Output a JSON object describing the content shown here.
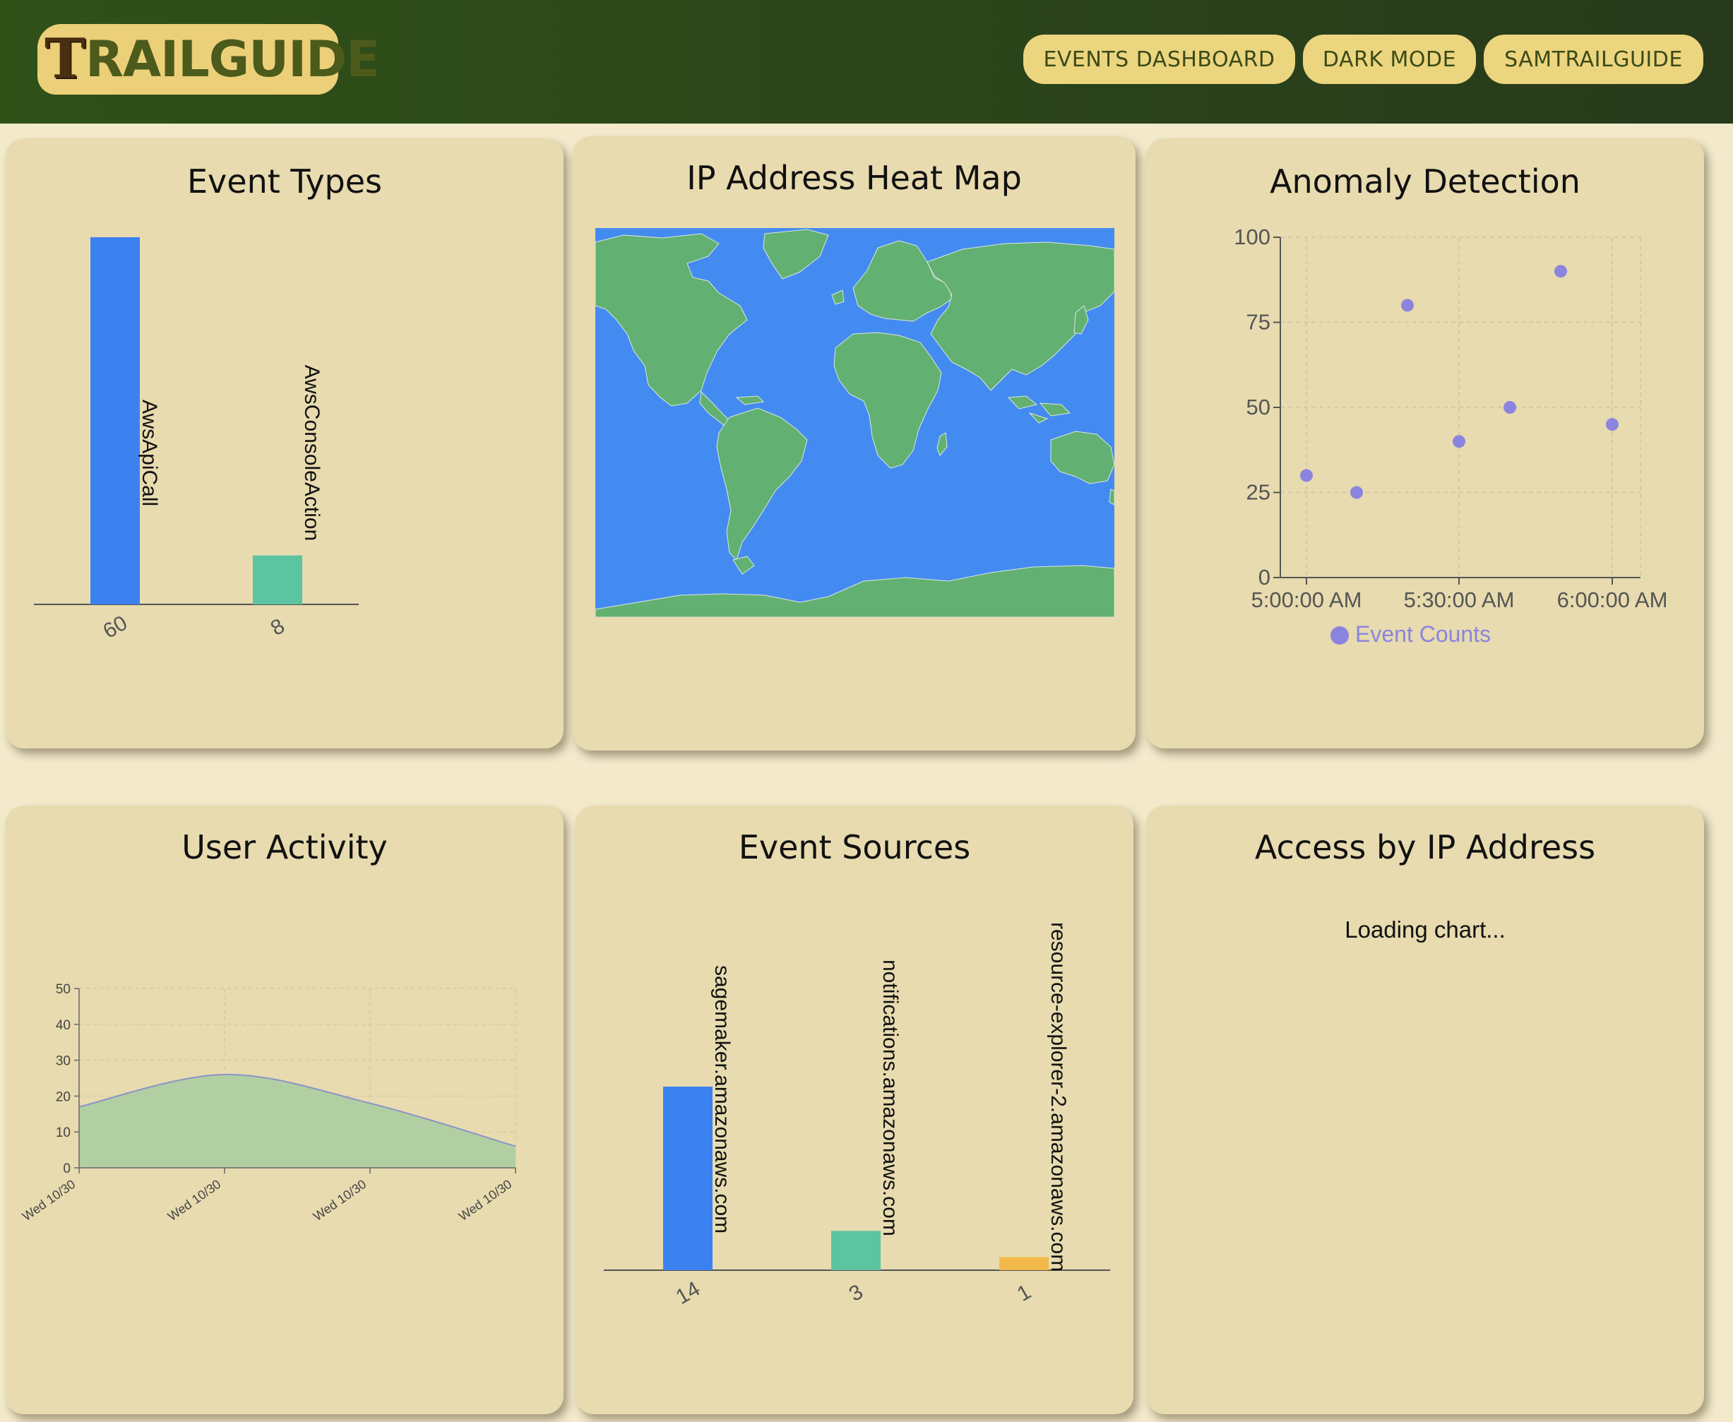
{
  "header": {
    "logo_first": "T",
    "logo_rest": "RAILGUIDE",
    "nav": [
      "EVENTS DASHBOARD",
      "DARK MODE",
      "SAMTRAILGUIDE"
    ]
  },
  "cards": {
    "event_types": {
      "title": "Event Types",
      "chart_data": {
        "type": "bar",
        "categories": [
          "AwsApiCall",
          "AwsConsoleAction"
        ],
        "values": [
          60,
          8
        ],
        "tick_labels": [
          "60",
          "8"
        ],
        "colors": [
          "#3b82f0",
          "#5cc4a0"
        ]
      }
    },
    "ip_heat_map": {
      "title": "IP Address Heat Map",
      "ocean_color": "#448bf1",
      "land_color": "#62b072"
    },
    "anomaly": {
      "title": "Anomaly Detection",
      "chart_data": {
        "type": "scatter",
        "x": [
          "5:00:00 AM",
          "5:10:00 AM",
          "5:20:00 AM",
          "5:30:00 AM",
          "5:40:00 AM",
          "5:50:00 AM",
          "6:00:00 AM"
        ],
        "y": [
          30,
          25,
          80,
          40,
          50,
          90,
          45
        ],
        "x_ticks": [
          "5:00:00 AM",
          "5:30:00 AM",
          "6:00:00 AM"
        ],
        "y_ticks": [
          0,
          25,
          50,
          75,
          100
        ],
        "ylim": [
          0,
          100
        ],
        "legend": "Event Counts",
        "legend_position": "bottom",
        "color": "#8b84de",
        "grid": true
      }
    },
    "user_activity": {
      "title": "User Activity",
      "chart_data": {
        "type": "area",
        "x": [
          "Wed 10/30",
          "Wed 10/30",
          "Wed 10/30",
          "Wed 10/30"
        ],
        "y": [
          17,
          26,
          18,
          6
        ],
        "y_ticks": [
          0,
          10,
          20,
          30,
          40,
          50
        ],
        "ylim": [
          0,
          50
        ],
        "fill": "#b1cfa2",
        "stroke": "#8c93c8",
        "grid": true
      }
    },
    "event_sources": {
      "title": "Event Sources",
      "chart_data": {
        "type": "bar",
        "categories": [
          "sagemaker.amazonaws.com",
          "notifications.amazonaws.com",
          "resource-explorer-2.amazonaws.com"
        ],
        "values": [
          14,
          3,
          1
        ],
        "tick_labels": [
          "14",
          "3",
          "1"
        ],
        "colors": [
          "#3b82f0",
          "#5cc4a0",
          "#f2b94a"
        ]
      }
    },
    "access_ip": {
      "title": "Access by IP Address",
      "loading": "Loading chart..."
    }
  }
}
